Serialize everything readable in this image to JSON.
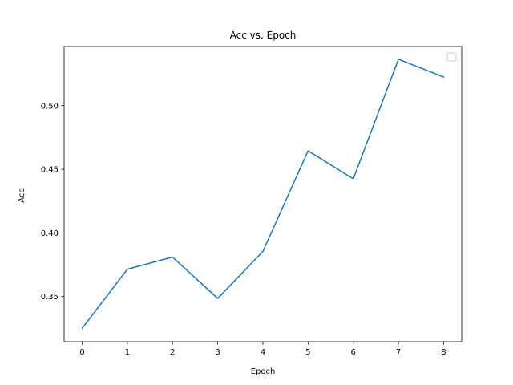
{
  "chart_data": {
    "type": "line",
    "title": "Acc vs. Epoch",
    "xlabel": "Epoch",
    "ylabel": "Acc",
    "x": [
      0,
      1,
      2,
      3,
      4,
      5,
      6,
      7,
      8
    ],
    "series": [
      {
        "values": [
          0.325,
          0.3715,
          0.381,
          0.3485,
          0.3855,
          0.4645,
          0.4425,
          0.5365,
          0.5225
        ],
        "color": "#1f77b4"
      }
    ],
    "xlim": [
      -0.4,
      8.4
    ],
    "ylim": [
      0.3145,
      0.5465
    ],
    "xticks": [
      0,
      1,
      2,
      3,
      4,
      5,
      6,
      7,
      8
    ],
    "xtick_labels": [
      "0",
      "1",
      "2",
      "3",
      "4",
      "5",
      "6",
      "7",
      "8"
    ],
    "yticks": [
      0.35,
      0.4,
      0.45,
      0.5
    ],
    "ytick_labels": [
      "0.35",
      "0.40",
      "0.45",
      "0.50"
    ],
    "grid": false,
    "legend": {
      "placement": "top-right",
      "entries": []
    }
  }
}
